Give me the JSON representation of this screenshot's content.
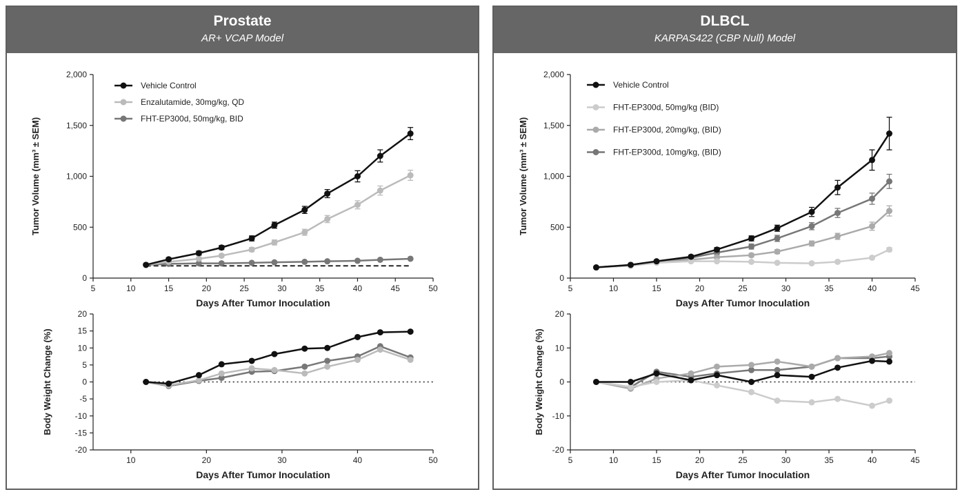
{
  "panels": [
    {
      "title": "Prostate",
      "subtitle": "AR+ VCAP Model",
      "charts": {
        "tumor": {
          "type": "line",
          "ylabel": "Tumor Volume (mm³ ± SEM)",
          "xlabel": "Days After Tumor Inoculation",
          "xlim": [
            5,
            50
          ],
          "ylim": [
            0,
            2000
          ],
          "xticks": [
            5,
            10,
            15,
            20,
            25,
            30,
            35,
            40,
            45,
            50
          ],
          "yticks": [
            0,
            500,
            1000,
            1500,
            2000
          ],
          "ytick_labels": [
            "0",
            "500",
            "1,000",
            "1,500",
            "2,000"
          ],
          "legend_position": "top-left",
          "reference_line": {
            "y": 120,
            "style": "dashed",
            "x_range": [
              12,
              47
            ]
          },
          "series": [
            {
              "name": "Vehicle  Control",
              "color": "#111111",
              "x": [
                12,
                15,
                19,
                22,
                26,
                29,
                33,
                36,
                40,
                43,
                47
              ],
              "y": [
                130,
                185,
                245,
                300,
                390,
                520,
                670,
                830,
                1000,
                1200,
                1420
              ],
              "err": [
                10,
                15,
                20,
                20,
                25,
                30,
                35,
                40,
                55,
                60,
                60
              ]
            },
            {
              "name": "Enzalutamide, 30mg/kg, QD",
              "color": "#bbbbbb",
              "x": [
                12,
                15,
                19,
                22,
                26,
                29,
                33,
                36,
                40,
                43,
                47
              ],
              "y": [
                130,
                160,
                190,
                220,
                280,
                350,
                450,
                580,
                720,
                860,
                1010
              ],
              "err": [
                10,
                12,
                15,
                15,
                20,
                25,
                30,
                35,
                40,
                45,
                50
              ]
            },
            {
              "name": "FHT-EP300d, 50mg/kg, BID",
              "color": "#777777",
              "x": [
                12,
                15,
                19,
                22,
                26,
                29,
                33,
                36,
                40,
                43,
                47
              ],
              "y": [
                130,
                140,
                145,
                145,
                150,
                155,
                160,
                165,
                170,
                180,
                190
              ],
              "err": [
                8,
                8,
                8,
                8,
                8,
                8,
                8,
                8,
                8,
                8,
                8
              ]
            }
          ]
        },
        "bw": {
          "type": "line",
          "ylabel": "Body Weight Change (%)",
          "xlabel": "Days After Tumor Inoculation",
          "xlim": [
            5,
            50
          ],
          "ylim": [
            -20,
            20
          ],
          "xticks": [
            10,
            20,
            30,
            40,
            50
          ],
          "yticks": [
            -20,
            -15,
            -10,
            -5,
            0,
            5,
            10,
            15,
            20
          ],
          "ytick_labels": [
            "-20",
            "-15",
            "-10",
            "-5",
            "0",
            "5",
            "10",
            "15",
            "20"
          ],
          "reference_line": {
            "y": 0,
            "style": "dotted",
            "x_range": [
              12,
              50
            ]
          },
          "series": [
            {
              "color": "#111111",
              "x": [
                12,
                15,
                19,
                22,
                26,
                29,
                33,
                36,
                40,
                43,
                47
              ],
              "y": [
                0,
                -0.5,
                2,
                5.2,
                6.2,
                8.2,
                9.8,
                10,
                13.2,
                14.6,
                14.8
              ]
            },
            {
              "color": "#bbbbbb",
              "x": [
                12,
                15,
                19,
                22,
                26,
                29,
                33,
                36,
                40,
                43,
                47
              ],
              "y": [
                0,
                -1,
                0.5,
                2.5,
                4,
                3.5,
                2.5,
                4.5,
                6.5,
                9.5,
                6.5
              ]
            },
            {
              "color": "#777777",
              "x": [
                12,
                15,
                19,
                22,
                26,
                29,
                33,
                36,
                40,
                43,
                47
              ],
              "y": [
                0,
                -1.2,
                0.3,
                1.2,
                3,
                3.2,
                4.5,
                6.2,
                7.5,
                10.5,
                7.2
              ]
            }
          ]
        }
      }
    },
    {
      "title": "DLBCL",
      "subtitle": "KARPAS422 (CBP Null) Model",
      "charts": {
        "tumor": {
          "type": "line",
          "ylabel": "Tumor Volume (mm³ ± SEM)",
          "xlabel": "Days After Tumor Inoculation",
          "xlim": [
            5,
            45
          ],
          "ylim": [
            0,
            2000
          ],
          "xticks": [
            5,
            10,
            15,
            20,
            25,
            30,
            35,
            40,
            45
          ],
          "yticks": [
            0,
            500,
            1000,
            1500,
            2000
          ],
          "ytick_labels": [
            "0",
            "500",
            "1,000",
            "1,500",
            "2,000"
          ],
          "legend_position": "top-left",
          "series": [
            {
              "name": "Vehicle Control",
              "color": "#111111",
              "x": [
                8,
                12,
                15,
                19,
                22,
                26,
                29,
                33,
                36,
                40,
                42
              ],
              "y": [
                105,
                130,
                165,
                210,
                280,
                390,
                490,
                650,
                890,
                1160,
                1420
              ],
              "err": [
                10,
                10,
                12,
                15,
                20,
                25,
                30,
                45,
                70,
                100,
                160
              ]
            },
            {
              "name": "FHT-EP300d, 50mg/kg (BID)",
              "color": "#cccccc",
              "x": [
                8,
                12,
                15,
                19,
                22,
                26,
                29,
                33,
                36,
                40,
                42
              ],
              "y": [
                105,
                120,
                150,
                165,
                165,
                160,
                150,
                145,
                160,
                200,
                280
              ],
              "err": [
                8,
                8,
                10,
                10,
                10,
                10,
                10,
                10,
                12,
                15,
                20
              ]
            },
            {
              "name": "FHT-EP300d, 20mg/kg, (BID)",
              "color": "#aaaaaa",
              "x": [
                8,
                12,
                15,
                19,
                22,
                26,
                29,
                33,
                36,
                40,
                42
              ],
              "y": [
                105,
                125,
                155,
                180,
                205,
                225,
                260,
                340,
                410,
                510,
                660
              ],
              "err": [
                8,
                8,
                10,
                12,
                15,
                18,
                20,
                25,
                30,
                40,
                50
              ]
            },
            {
              "name": "FHT-EP300d, 10mg/kg, (BID)",
              "color": "#777777",
              "x": [
                8,
                12,
                15,
                19,
                22,
                26,
                29,
                33,
                36,
                40,
                42
              ],
              "y": [
                105,
                130,
                160,
                200,
                250,
                310,
                390,
                510,
                640,
                780,
                950
              ],
              "err": [
                8,
                10,
                12,
                15,
                18,
                25,
                30,
                35,
                45,
                55,
                70
              ]
            }
          ]
        },
        "bw": {
          "type": "line",
          "ylabel": "Body Weight Change (%)",
          "xlabel": "Days After Tumor Inoculation",
          "xlim": [
            5,
            45
          ],
          "ylim": [
            -20,
            20
          ],
          "xticks": [
            5,
            10,
            15,
            20,
            25,
            30,
            35,
            40,
            45
          ],
          "yticks": [
            -20,
            -10,
            0,
            10,
            20
          ],
          "ytick_labels": [
            "-20",
            "-10",
            "0",
            "10",
            "20"
          ],
          "reference_line": {
            "y": 0,
            "style": "dotted",
            "x_range": [
              8,
              45
            ]
          },
          "series": [
            {
              "color": "#111111",
              "x": [
                8,
                12,
                15,
                19,
                22,
                26,
                29,
                33,
                36,
                40,
                42
              ],
              "y": [
                0,
                0,
                2.5,
                0.5,
                2,
                0,
                2,
                1.5,
                4.2,
                6.2,
                6
              ]
            },
            {
              "color": "#cccccc",
              "x": [
                8,
                12,
                15,
                19,
                22,
                26,
                29,
                33,
                36,
                40,
                42
              ],
              "y": [
                0,
                -1.5,
                0,
                0.5,
                -1,
                -3,
                -5.5,
                -6,
                -5,
                -7,
                -5.5
              ]
            },
            {
              "color": "#aaaaaa",
              "x": [
                8,
                12,
                15,
                19,
                22,
                26,
                29,
                33,
                36,
                40,
                42
              ],
              "y": [
                0,
                -2,
                1,
                2.5,
                4.5,
                5,
                6,
                4.5,
                7,
                7.5,
                8.5
              ]
            },
            {
              "color": "#777777",
              "x": [
                8,
                12,
                15,
                19,
                22,
                26,
                29,
                33,
                36,
                40,
                42
              ],
              "y": [
                0,
                -1.5,
                3,
                1.5,
                2.5,
                3.5,
                3.5,
                4.5,
                7,
                7,
                7.5
              ]
            }
          ]
        }
      }
    }
  ]
}
